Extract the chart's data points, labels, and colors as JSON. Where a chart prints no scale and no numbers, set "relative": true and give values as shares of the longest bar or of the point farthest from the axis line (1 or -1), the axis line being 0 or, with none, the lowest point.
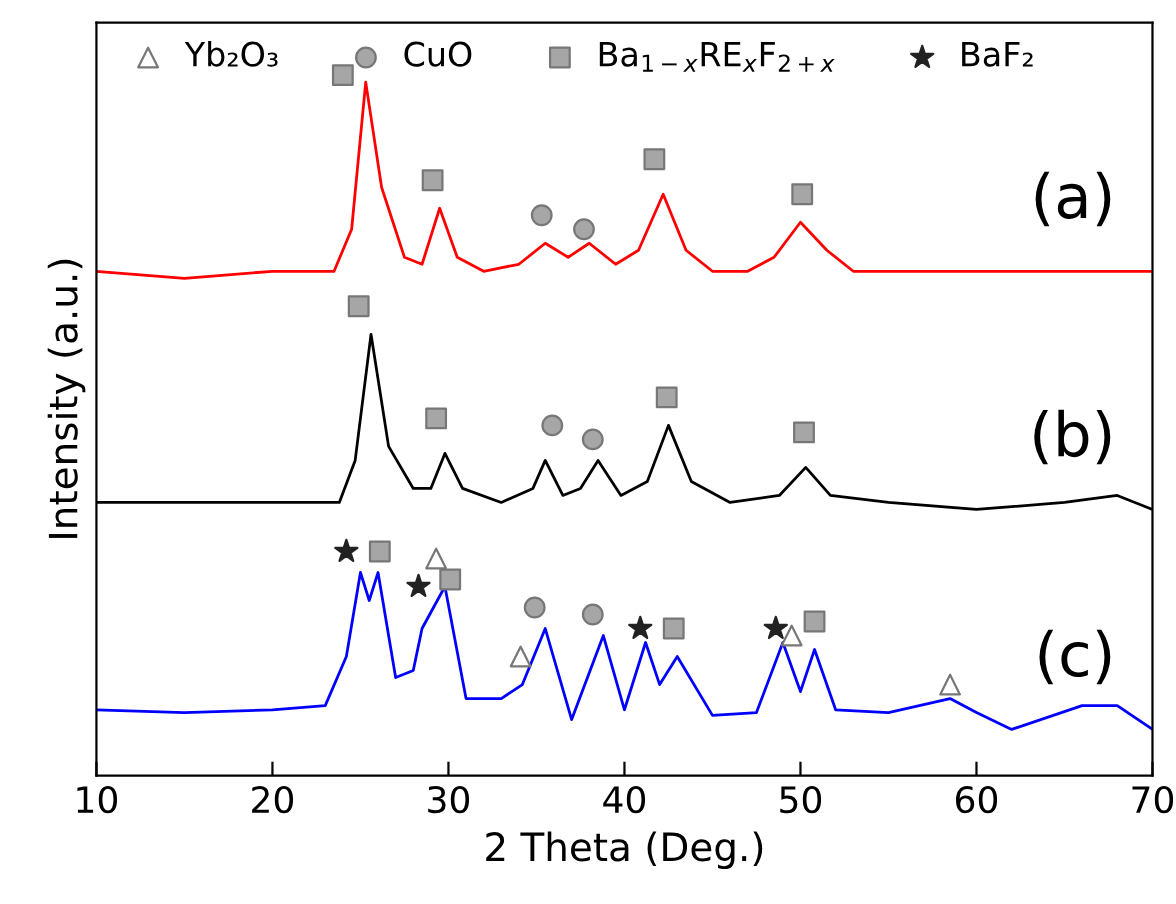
{
  "chart_data": {
    "type": "line",
    "relative": true,
    "xlabel": "2 Theta (Deg.)",
    "ylabel": "Intensity (a.u.)",
    "xlim": [
      10,
      70
    ],
    "xticks": [
      10,
      20,
      30,
      40,
      50,
      60,
      70
    ],
    "tick_labels": "x",
    "grid": false,
    "legend": "top",
    "annotations": [
      "(a)",
      "(b)",
      "(c)"
    ],
    "series": [
      {
        "color": "#ff0000",
        "x": [
          10,
          15,
          20,
          23.5,
          24.5,
          25.3,
          26.2,
          27.5,
          28.5,
          29.5,
          30.5,
          32,
          34,
          35.5,
          36.8,
          38,
          39.5,
          40.8,
          42.2,
          43.5,
          45,
          47,
          48.5,
          50,
          51.5,
          53,
          56,
          60,
          65,
          70
        ],
        "values": [
          0.72,
          0.71,
          0.72,
          0.72,
          0.78,
          0.99,
          0.84,
          0.74,
          0.73,
          0.81,
          0.74,
          0.72,
          0.73,
          0.76,
          0.74,
          0.76,
          0.73,
          0.75,
          0.83,
          0.75,
          0.72,
          0.72,
          0.74,
          0.79,
          0.75,
          0.72,
          0.72,
          0.72,
          0.72,
          0.72
        ]
      },
      {
        "color": "#000000",
        "x": [
          10,
          15,
          20,
          23.8,
          24.7,
          25.6,
          26.6,
          28,
          29,
          29.8,
          30.8,
          33,
          34.8,
          35.5,
          36.5,
          37.5,
          38.5,
          39.8,
          41.3,
          42.5,
          43.8,
          46,
          48.8,
          50.3,
          51.7,
          55,
          60,
          65,
          68,
          70
        ],
        "values": [
          0.39,
          0.39,
          0.39,
          0.39,
          0.45,
          0.63,
          0.47,
          0.41,
          0.41,
          0.46,
          0.41,
          0.39,
          0.41,
          0.45,
          0.4,
          0.41,
          0.45,
          0.4,
          0.42,
          0.5,
          0.42,
          0.39,
          0.4,
          0.44,
          0.4,
          0.39,
          0.38,
          0.39,
          0.4,
          0.38
        ]
      },
      {
        "color": "#0000ff",
        "x": [
          10,
          15,
          20,
          23,
          24.2,
          25,
          25.5,
          26,
          27,
          28,
          28.5,
          29.8,
          31,
          33,
          34.2,
          35.5,
          37,
          38.8,
          40,
          41.2,
          42,
          43,
          45,
          47.5,
          49,
          50,
          50.8,
          52,
          55,
          58.5,
          60,
          62,
          66,
          68,
          70
        ],
        "values": [
          0.094,
          0.09,
          0.094,
          0.1,
          0.17,
          0.29,
          0.25,
          0.29,
          0.14,
          0.15,
          0.21,
          0.27,
          0.11,
          0.11,
          0.13,
          0.21,
          0.08,
          0.2,
          0.094,
          0.19,
          0.13,
          0.17,
          0.086,
          0.09,
          0.19,
          0.12,
          0.18,
          0.094,
          0.09,
          0.11,
          0.09,
          0.066,
          0.1,
          0.1,
          0.066
        ]
      },
      {
        "type": "scatter",
        "name": "Yb₂O₃",
        "marker": "triangle",
        "color": "#ffffff",
        "x": [
          29.3,
          34.1,
          49.5,
          58.5
        ],
        "values": [
          0.31,
          0.17,
          0.2,
          0.13
        ]
      },
      {
        "type": "scatter",
        "name": "CuO",
        "marker": "circle",
        "color": "#a6a6a6",
        "x": [
          35.3,
          37.7,
          35.9,
          38.2,
          34.9,
          38.2
        ],
        "values": [
          0.8,
          0.78,
          0.5,
          0.48,
          0.24,
          0.23
        ]
      },
      {
        "type": "scatter",
        "name": "Ba$_{1−x}$RE$_{x}$F$_{2+x}$",
        "marker": "square",
        "color": "#a6a6a6",
        "x": [
          24.0,
          29.1,
          41.7,
          50.1,
          24.9,
          29.3,
          42.4,
          50.2,
          26.1,
          30.1,
          42.8,
          50.8
        ],
        "values": [
          1.0,
          0.85,
          0.88,
          0.83,
          0.67,
          0.51,
          0.54,
          0.49,
          0.32,
          0.28,
          0.21,
          0.22
        ]
      },
      {
        "type": "scatter",
        "name": "BaF₂",
        "marker": "star",
        "color": "#222222",
        "x": [
          24.2,
          28.3,
          40.9,
          48.6
        ],
        "values": [
          0.32,
          0.27,
          0.21,
          0.21
        ]
      }
    ]
  }
}
